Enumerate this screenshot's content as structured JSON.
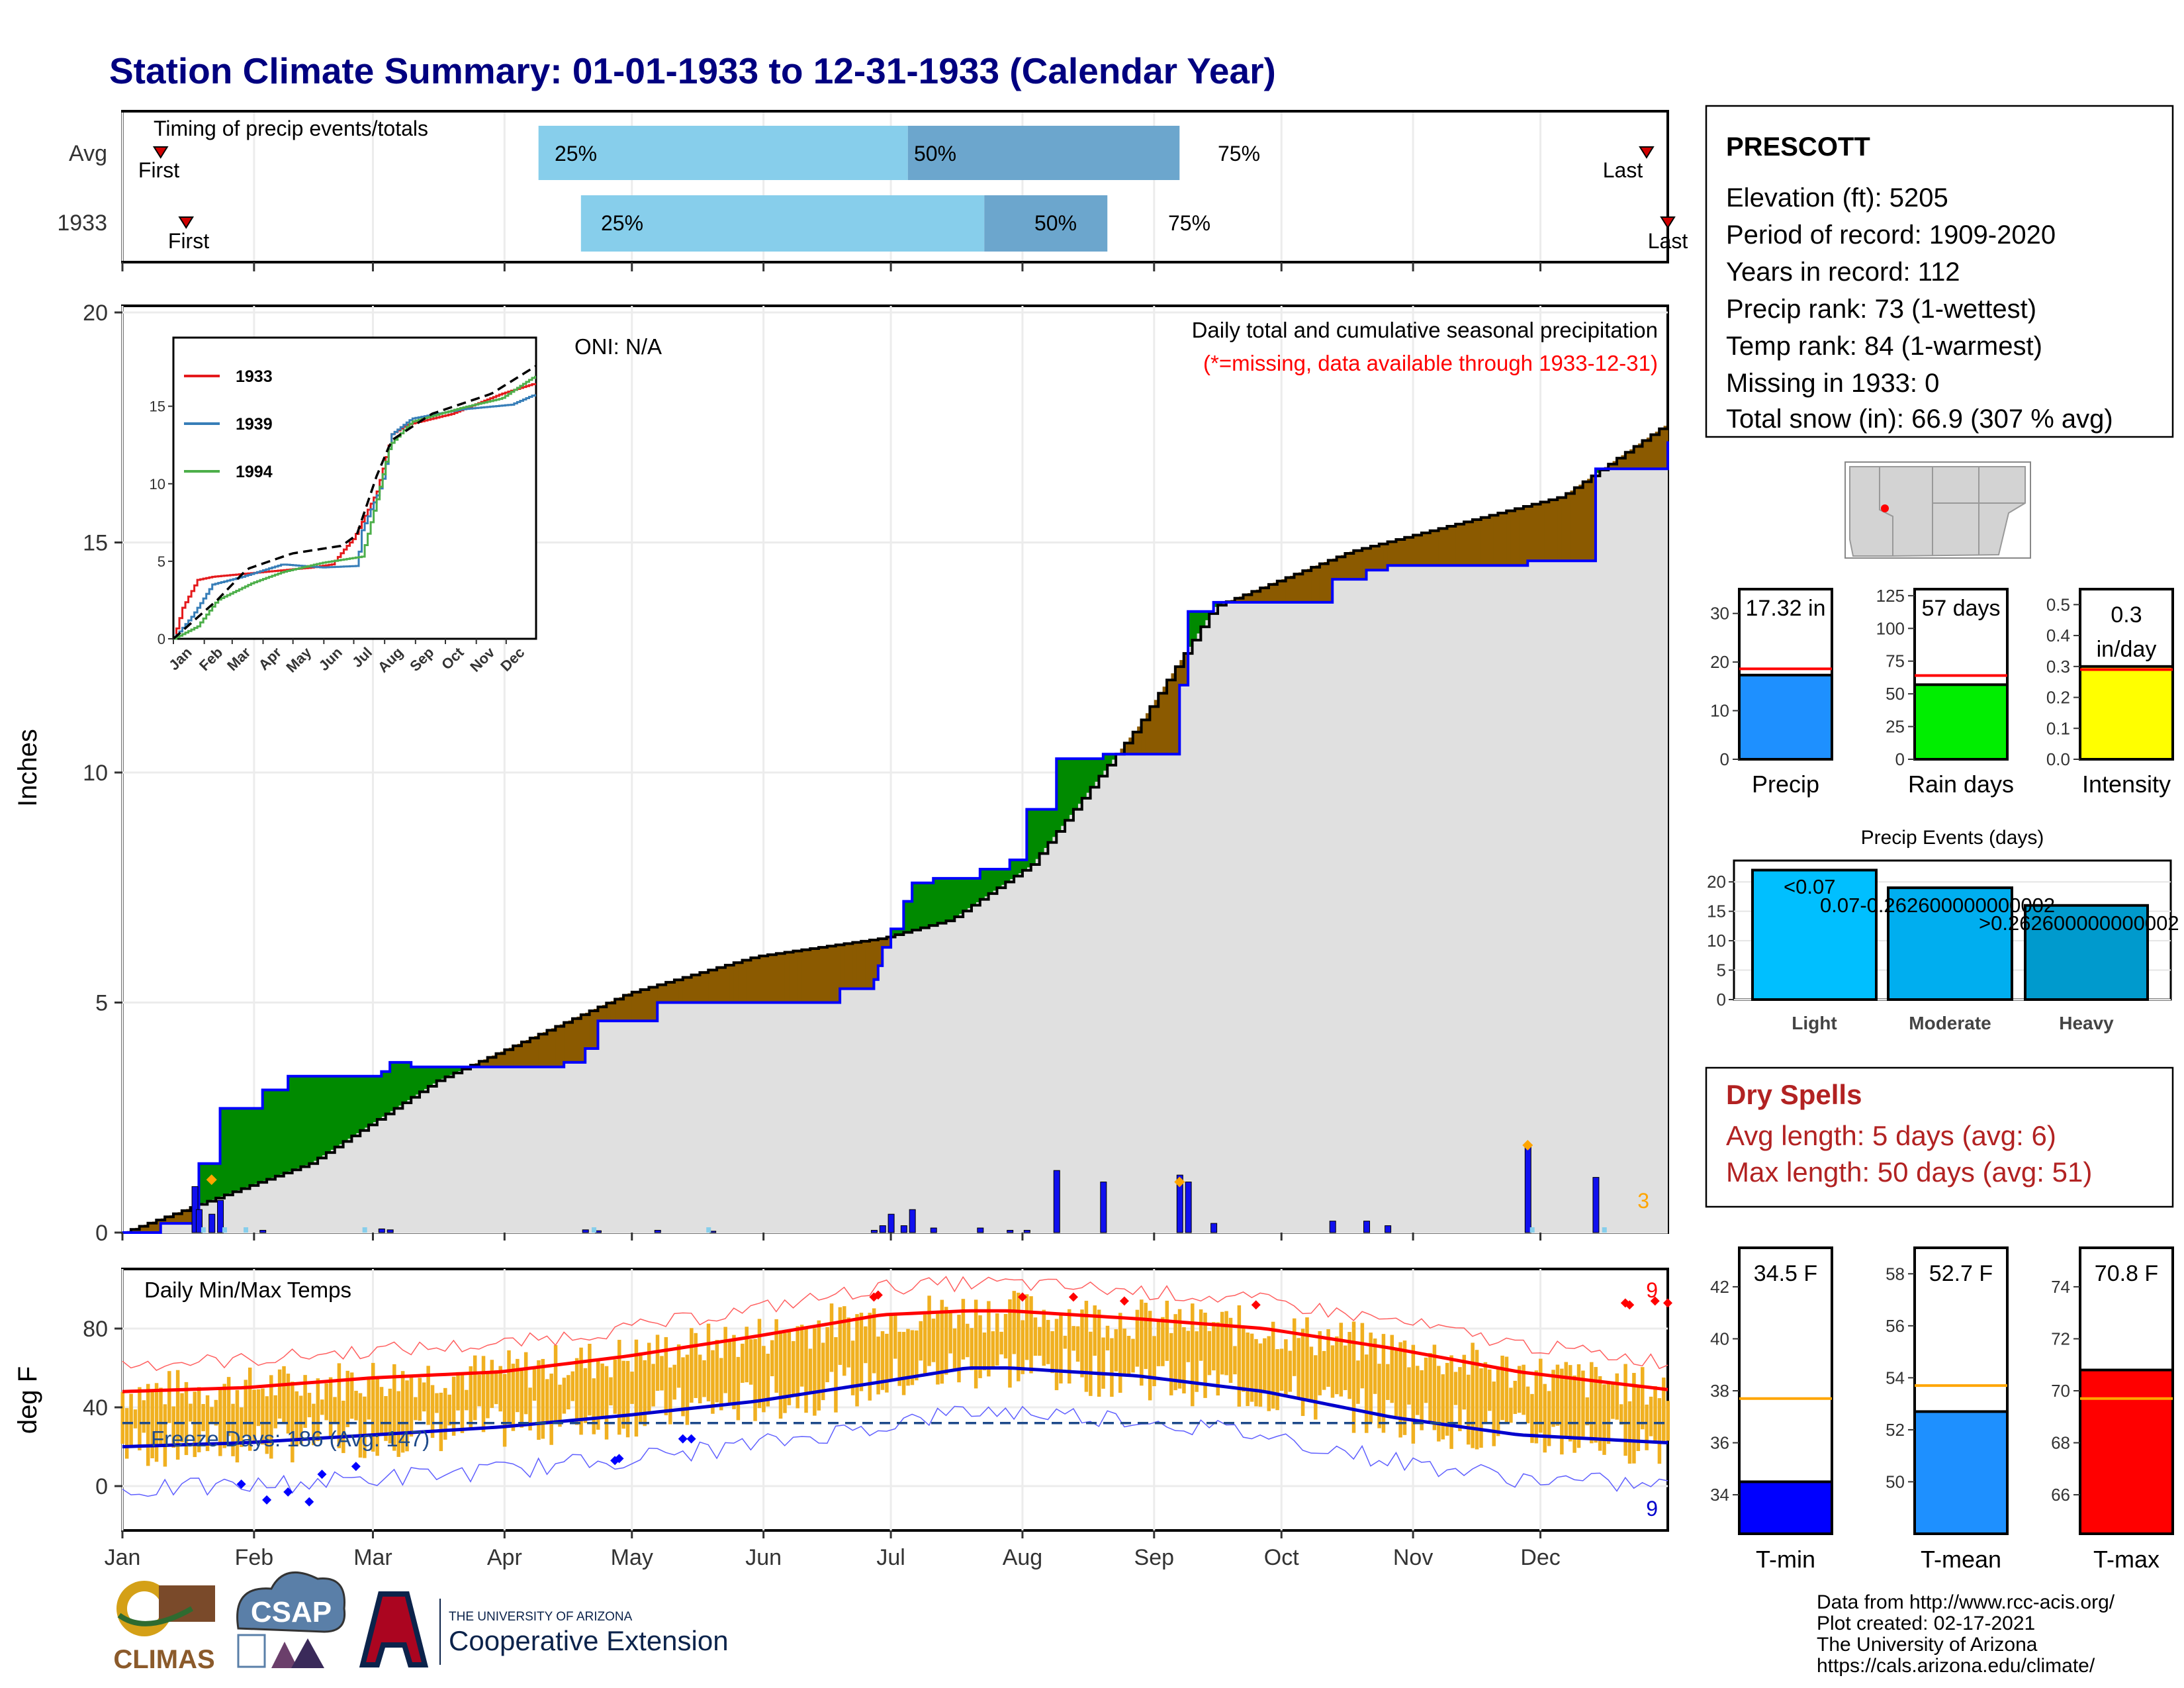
{
  "title": "Station Climate Summary: 01-01-1933 to 12-31-1933 (Calendar Year)",
  "colors": {
    "title": "#000080",
    "deficit": "#8B5A00",
    "surplus": "#008A00",
    "observed": "#0000FF",
    "temp_bar": "#F0B020",
    "tmax": "#FF0000",
    "tmin": "#0000CC"
  },
  "timing": {
    "title": "Timing of precip events/totals",
    "rows": [
      {
        "label": "Avg",
        "first": "First",
        "last": "Last",
        "first_day": 10,
        "last_day": 360,
        "p25": 99,
        "p50": 186,
        "p75": 250,
        "p25_label": "25%",
        "p50_label": "50%",
        "p75_label": "75%"
      },
      {
        "label": "1933",
        "first": "First",
        "last": "Last",
        "first_day": 16,
        "last_day": 365,
        "p25": 109,
        "p50": 204,
        "p75": 233,
        "p25_label": "25%",
        "p50_label": "50%",
        "p75_label": "75%"
      }
    ]
  },
  "precip_panel": {
    "subtitle": "Daily total and cumulative seasonal precipitation",
    "note": "(*=missing, data available through 1933-12-31)",
    "oni": "ONI: N/A",
    "ylabel": "Inches",
    "yticks": [
      "0",
      "5",
      "10",
      "15",
      "20"
    ],
    "corner_count": "3"
  },
  "inset": {
    "months": [
      "Jan",
      "Feb",
      "Mar",
      "Apr",
      "May",
      "Jun",
      "Jul",
      "Aug",
      "Sep",
      "Oct",
      "Nov",
      "Dec"
    ],
    "yticks": [
      "0",
      "5",
      "10",
      "15"
    ],
    "legend": [
      {
        "name": "1933",
        "color": "#E41A1C"
      },
      {
        "name": "1939",
        "color": "#377EB8"
      },
      {
        "name": "1994",
        "color": "#4DAF4A"
      }
    ]
  },
  "temp_panel": {
    "title": "Daily Min/Max Temps",
    "ylabel": "deg F",
    "yticks": [
      "0",
      "40",
      "80"
    ],
    "freeze_label": "Freeze Days: 186 (Avg: 147)",
    "count_high": "9",
    "count_low": "9"
  },
  "months": [
    "Jan",
    "Feb",
    "Mar",
    "Apr",
    "May",
    "Jun",
    "Jul",
    "Aug",
    "Sep",
    "Oct",
    "Nov",
    "Dec"
  ],
  "station": {
    "name": "PRESCOTT",
    "lines": [
      "Elevation (ft): 5205",
      "Period of record: 1909-2020",
      "Years in record: 112",
      "Precip rank: 73 (1-wettest)",
      "Temp rank: 84 (1-warmest)",
      "Missing in 1933: 0",
      "Total snow (in): 66.9 (307 % avg)"
    ]
  },
  "stat_bars": [
    {
      "label": "Precip",
      "value_label": "17.32 in",
      "value": 17.32,
      "avg": 18.6,
      "color": "#1E90FF",
      "ymax": 35,
      "ticks": [
        "0",
        "10",
        "20",
        "30"
      ],
      "tickvals": [
        0,
        10,
        20,
        30
      ]
    },
    {
      "label": "Rain days",
      "value_label": "57 days",
      "value": 57,
      "avg": 64,
      "color": "#00EE00",
      "ymax": 130,
      "ticks": [
        "0",
        "25",
        "50",
        "75",
        "100",
        "125"
      ],
      "tickvals": [
        0,
        25,
        50,
        75,
        100,
        125
      ]
    },
    {
      "label": "Intensity",
      "value_label_1": "0.3",
      "value_label_2": "in/day",
      "value": 0.3,
      "avg": 0.29,
      "color": "#FFFF00",
      "ymax": 0.55,
      "ticks": [
        "0.0",
        "0.1",
        "0.2",
        "0.3",
        "0.4",
        "0.5"
      ],
      "tickvals": [
        0,
        0.1,
        0.2,
        0.3,
        0.4,
        0.5
      ]
    }
  ],
  "events": {
    "title": "Precip Events (days)",
    "yticks": [
      "0",
      "5",
      "10",
      "15",
      "20"
    ],
    "bars": [
      {
        "label": "Light",
        "value": 22,
        "text": "<0.07",
        "color": "#00BFFF"
      },
      {
        "label": "Moderate",
        "value": 19,
        "text": "0.07-0.262600000000002",
        "color": "#00AEEF"
      },
      {
        "label": "Heavy",
        "value": 16,
        "text": ">0.262600000000002",
        "color": "#009ACD"
      }
    ]
  },
  "dry_spells": {
    "title": "Dry Spells",
    "avg": "Avg length: 5 days (avg: 6)",
    "max": "Max length: 50 days (avg: 51)"
  },
  "temp_bars": [
    {
      "label": "T-min",
      "value_label": "34.5 F",
      "value": 34.5,
      "avg": 37.7,
      "color": "#0000FF",
      "ymin": 32.5,
      "ymax": 43.5,
      "ticks": [
        "34",
        "36",
        "38",
        "40",
        "42"
      ],
      "tickvals": [
        34,
        36,
        38,
        40,
        42
      ]
    },
    {
      "label": "T-mean",
      "value_label": "52.7 F",
      "value": 52.7,
      "avg": 53.7,
      "color": "#1E90FF",
      "ymin": 48,
      "ymax": 59,
      "ticks": [
        "50",
        "52",
        "54",
        "56",
        "58"
      ],
      "tickvals": [
        50,
        52,
        54,
        56,
        58
      ]
    },
    {
      "label": "T-max",
      "value_label": "70.8 F",
      "value": 70.8,
      "avg": 69.7,
      "color": "#FF0000",
      "ymin": 64.5,
      "ymax": 75.5,
      "ticks": [
        "66",
        "68",
        "70",
        "72",
        "74"
      ],
      "tickvals": [
        66,
        68,
        70,
        72,
        74
      ]
    }
  ],
  "footer": [
    "Data from http://www.rcc-acis.org/",
    "Plot created: 02-17-2021",
    "The University of Arizona",
    "https://cals.arizona.edu/climate/"
  ],
  "logos": {
    "climas": "CLIMAS",
    "csap": "CSAP",
    "ua_small": "THE UNIVERSITY OF ARIZONA",
    "ua_big": "Cooperative Extension"
  },
  "chart_data": [
    {
      "type": "area",
      "title": "Daily total and cumulative seasonal precipitation",
      "ylabel": "Inches",
      "ylim": [
        0,
        20
      ],
      "x_unit": "day of year",
      "series": [
        {
          "name": "1933",
          "x": [
            1,
            10,
            18,
            19,
            22,
            24,
            34,
            40,
            55,
            62,
            64,
            69,
            75,
            105,
            110,
            113,
            127,
            170,
            178,
            179,
            180,
            182,
            185,
            187,
            192,
            203,
            210,
            214,
            221,
            232,
            237,
            250,
            252,
            258,
            259,
            286,
            294,
            299,
            310,
            332,
            348,
            365
          ],
          "y": [
            0,
            0.2,
            0.5,
            1.5,
            1.5,
            2.7,
            3.1,
            3.4,
            3.4,
            3.5,
            3.7,
            3.6,
            3.6,
            3.7,
            4.0,
            4.6,
            5.0,
            5.3,
            5.5,
            5.8,
            6.2,
            6.6,
            7.2,
            7.6,
            7.7,
            7.9,
            8.1,
            9.2,
            10.3,
            10.4,
            10.4,
            11.9,
            13.5,
            13.7,
            13.7,
            14.2,
            14.4,
            14.5,
            14.5,
            14.6,
            16.6,
            17.2
          ]
        }
      ]
    },
    {
      "type": "line",
      "title": "Daily Min/Max Temps",
      "ylabel": "deg F",
      "series": [
        {
          "name": "",
          "x": [
            1,
            30,
            60,
            90,
            120,
            150,
            180,
            200,
            210,
            240,
            270,
            300,
            330,
            365
          ],
          "y": [
            48,
            50,
            55,
            58,
            66,
            76,
            87,
            89,
            89,
            85,
            80,
            70,
            58,
            49
          ]
        },
        {
          "name": "",
          "x": [
            1,
            30,
            60,
            90,
            120,
            150,
            180,
            200,
            210,
            240,
            270,
            300,
            330,
            365
          ],
          "y": [
            20,
            22,
            26,
            30,
            36,
            43,
            53,
            60,
            60,
            56,
            48,
            35,
            26,
            22
          ]
        }
      ]
    },
    {
      "type": "bar",
      "title": "Precip Events (days)",
      "categories": [
        "Light",
        "Moderate",
        "Heavy"
      ],
      "values": [
        22,
        19,
        16
      ]
    },
    {
      "type": "bar",
      "categories": [
        "Precip",
        "Rain days",
        "Intensity"
      ],
      "values": [
        17.32,
        57,
        0.3
      ]
    },
    {
      "type": "bar",
      "categories": [
        "T-min",
        "T-mean",
        "T-max"
      ],
      "values": [
        34.5,
        52.7,
        70.8
      ]
    }
  ]
}
